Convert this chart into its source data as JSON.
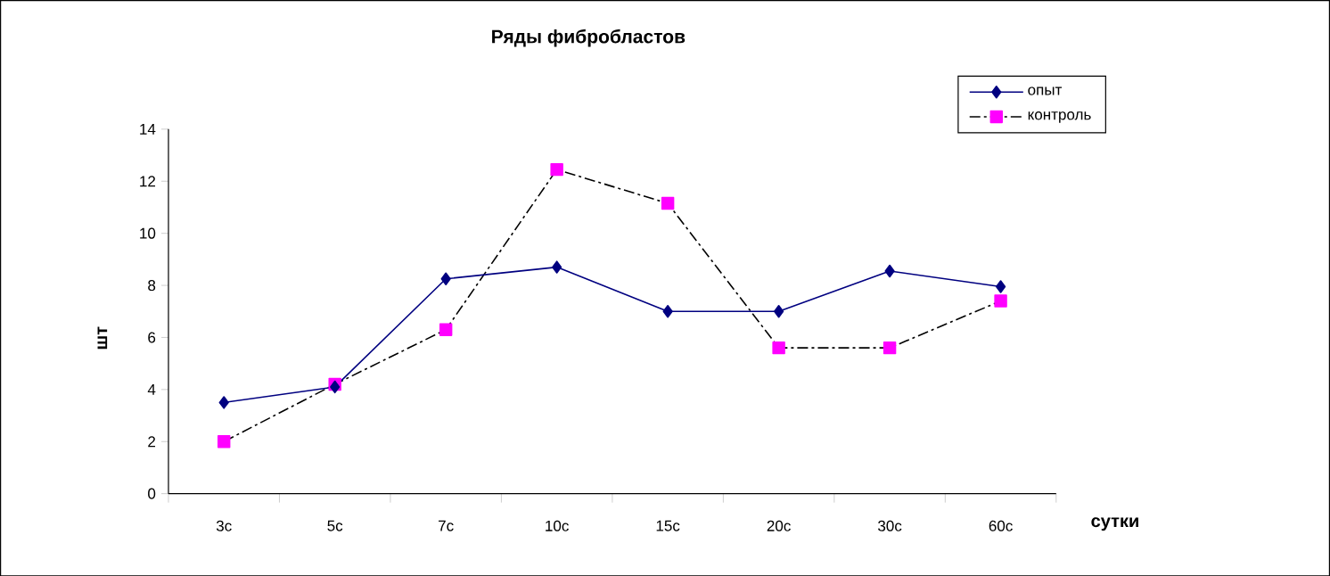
{
  "chart_data": {
    "type": "line",
    "title": "Ряды фибробластов",
    "xlabel": "сутки",
    "ylabel": "шт",
    "categories": [
      "3с",
      "5с",
      "7с",
      "10с",
      "15с",
      "20с",
      "30с",
      "60с"
    ],
    "series": [
      {
        "name": "опыт",
        "color": "#000080",
        "marker": "diamond",
        "line_style": "solid",
        "values": [
          3.5,
          4.1,
          8.25,
          8.7,
          7.0,
          7.0,
          8.55,
          7.95
        ]
      },
      {
        "name": "контроль",
        "color": "#ff00ff",
        "marker": "square",
        "line_style": "dashed",
        "values": [
          2.0,
          4.2,
          6.3,
          12.45,
          11.15,
          5.6,
          5.6,
          7.4
        ]
      }
    ],
    "ylim": [
      0,
      14
    ],
    "yticks": [
      0,
      2,
      4,
      6,
      8,
      10,
      12,
      14
    ],
    "grid": false,
    "legend": "top right"
  }
}
